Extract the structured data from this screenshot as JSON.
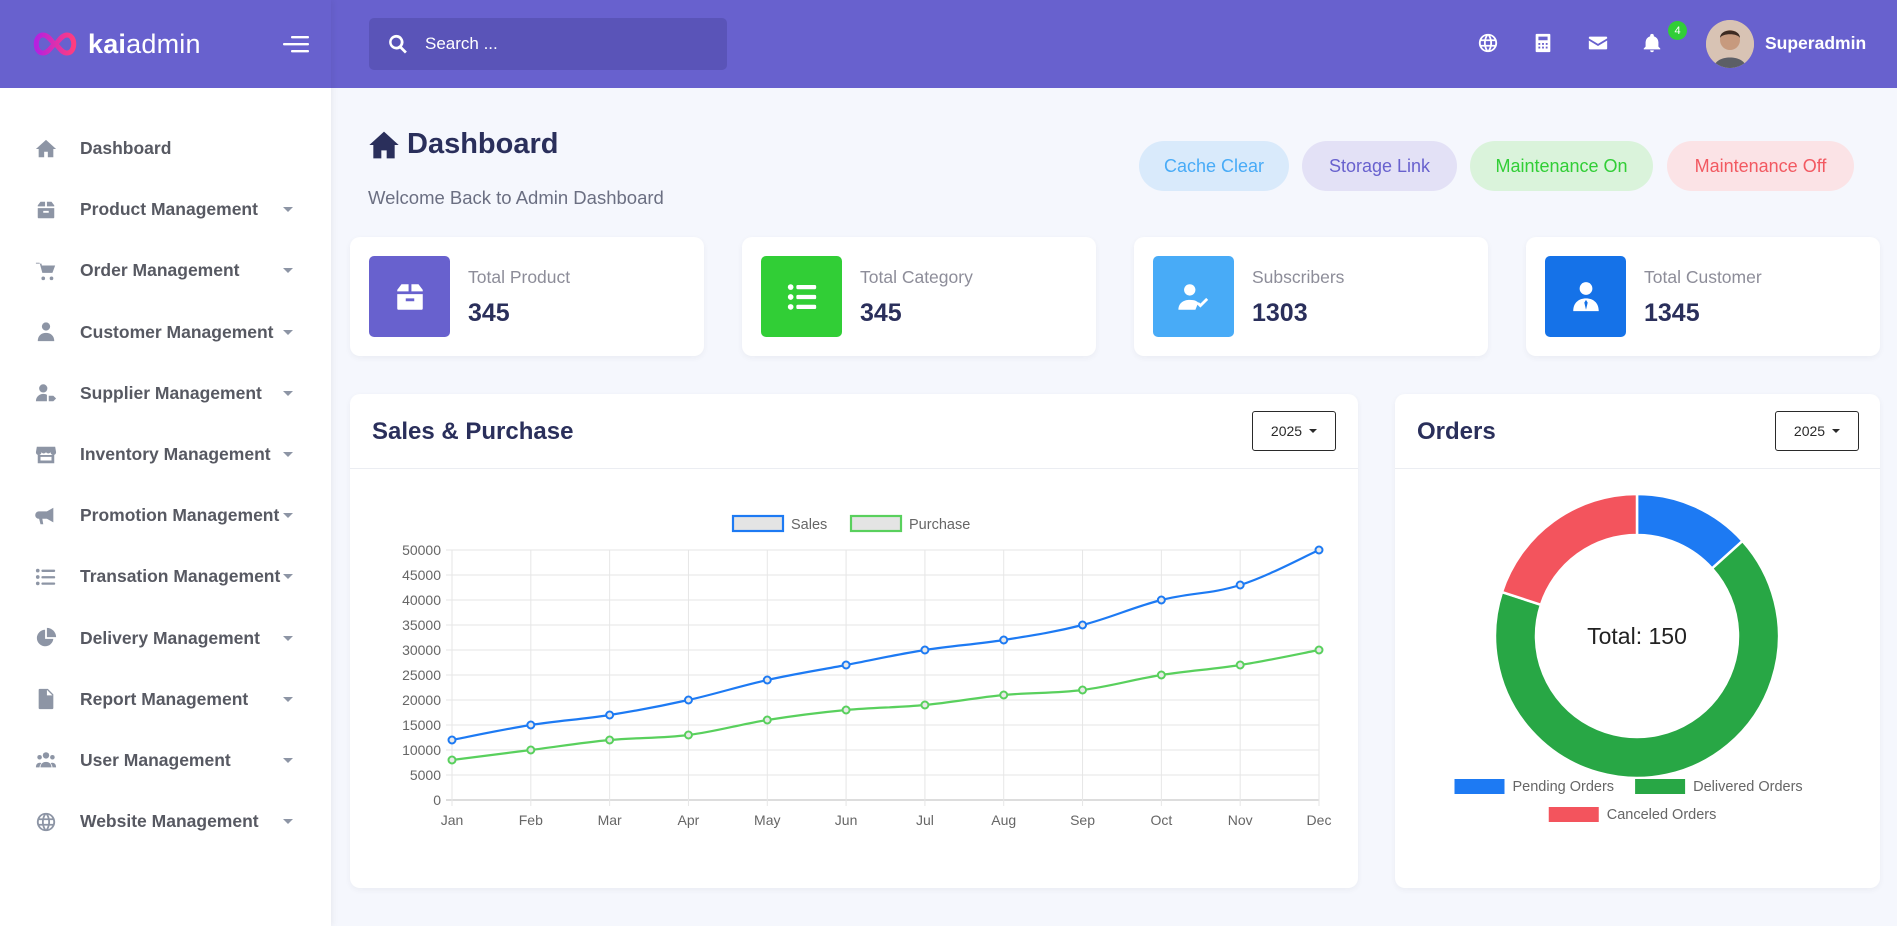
{
  "brand": {
    "name_bold": "kai",
    "name_light": "admin"
  },
  "sidebar": {
    "items": [
      {
        "label": "Dashboard",
        "icon": "home-icon",
        "has_caret": false
      },
      {
        "label": "Product Management",
        "icon": "box-icon",
        "has_caret": true
      },
      {
        "label": "Order Management",
        "icon": "cart-icon",
        "has_caret": true
      },
      {
        "label": "Customer Management",
        "icon": "user-tie-icon",
        "has_caret": true
      },
      {
        "label": "Supplier Management",
        "icon": "user-tag-icon",
        "has_caret": true
      },
      {
        "label": "Inventory Management",
        "icon": "store-icon",
        "has_caret": true
      },
      {
        "label": "Promotion Management",
        "icon": "bullhorn-icon",
        "has_caret": true
      },
      {
        "label": "Transation Management",
        "icon": "list-icon",
        "has_caret": true
      },
      {
        "label": "Delivery Management",
        "icon": "pie-icon",
        "has_caret": true
      },
      {
        "label": "Report Management",
        "icon": "file-icon",
        "has_caret": true
      },
      {
        "label": "User Management",
        "icon": "users-icon",
        "has_caret": true
      },
      {
        "label": "Website Management",
        "icon": "globe-icon",
        "has_caret": true
      }
    ]
  },
  "header": {
    "search_placeholder": "Search ...",
    "notification_count": "4",
    "user_name": "Superadmin",
    "icons": [
      "globe-icon",
      "calculator-icon",
      "envelope-icon",
      "bell-icon"
    ]
  },
  "page": {
    "title": "Dashboard",
    "subtitle": "Welcome Back to Admin Dashboard",
    "actions": {
      "cache_clear": "Cache Clear",
      "storage_link": "Storage Link",
      "maintenance_on": "Maintenance On",
      "maintenance_off": "Maintenance Off"
    }
  },
  "stats": [
    {
      "label": "Total Product",
      "value": "345",
      "color": "#6861ce",
      "icon": "box-icon"
    },
    {
      "label": "Total Category",
      "value": "345",
      "color": "#31ce36",
      "icon": "list-icon"
    },
    {
      "label": "Subscribers",
      "value": "1303",
      "color": "#48abf7",
      "icon": "user-check-icon"
    },
    {
      "label": "Total Customer",
      "value": "1345",
      "color": "#1572e8",
      "icon": "user-tie-icon"
    }
  ],
  "sales_card": {
    "title": "Sales & Purchase",
    "year": "2025"
  },
  "orders_card": {
    "title": "Orders",
    "year": "2025"
  },
  "chart_data": [
    {
      "type": "line",
      "title": "",
      "categories": [
        "Jan",
        "Feb",
        "Mar",
        "Apr",
        "May",
        "Jun",
        "Jul",
        "Aug",
        "Sep",
        "Oct",
        "Nov",
        "Dec"
      ],
      "series": [
        {
          "name": "Sales",
          "color": "#1d7af3",
          "values": [
            12000,
            15000,
            17000,
            20000,
            24000,
            27000,
            30000,
            32000,
            35000,
            40000,
            43000,
            50000
          ]
        },
        {
          "name": "Purchase",
          "color": "#59d05d",
          "values": [
            8000,
            10000,
            12000,
            13000,
            16000,
            18000,
            19000,
            21000,
            22000,
            25000,
            27000,
            30000
          ]
        }
      ],
      "ylim": [
        0,
        50000
      ],
      "yticks": [
        0,
        5000,
        10000,
        15000,
        20000,
        25000,
        30000,
        35000,
        40000,
        45000,
        50000
      ],
      "grid": true,
      "legend": "top"
    },
    {
      "type": "pie",
      "center_label": "Total: 150",
      "slices": [
        {
          "name": "Pending Orders",
          "value": 20,
          "color": "#1d7af3"
        },
        {
          "name": "Delivered Orders",
          "value": 100,
          "color": "#28a745"
        },
        {
          "name": "Canceled Orders",
          "value": 30,
          "color": "#f3545d"
        }
      ],
      "legend": "bottom"
    }
  ]
}
